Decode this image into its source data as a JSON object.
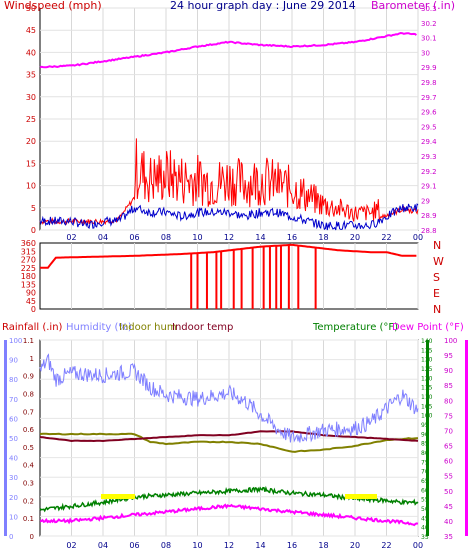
{
  "charts": {
    "title": "24 hour graph day : June 29 2014",
    "x_ticks": [
      "02",
      "04",
      "06",
      "08",
      "10",
      "12",
      "14",
      "16",
      "18",
      "20",
      "22",
      "00"
    ]
  },
  "colors": {
    "wind": "#ff0000",
    "gust_avg": "#0000cc",
    "barometer": "#ff00ff",
    "direction": "#ff0000",
    "humidity": "#8080ff",
    "indoor_hum": "#808000",
    "indoor_temp": "#800020",
    "temperature": "#008000",
    "dew_point": "#ff00ff",
    "rainfall": "#800000",
    "sunrise_sunset": "#ffff00"
  },
  "chart_data": [
    {
      "type": "line",
      "name": "wind-barometer",
      "ylabel_left": "Windspeed (mph)",
      "ylabel_right": "Barometer (.in)",
      "yticks_left": [
        "0",
        "5",
        "10",
        "15",
        "20",
        "25",
        "30",
        "35",
        "40",
        "45",
        "50"
      ],
      "yticks_right": [
        "28.8",
        "28.9",
        "29",
        "29.1",
        "29.2",
        "29.3",
        "29.4",
        "29.5",
        "29.6",
        "29.7",
        "29.8",
        "29.9",
        "30",
        "30.1",
        "30.2",
        "30.3"
      ],
      "ylim_left": [
        0,
        50
      ],
      "ylim_right": [
        28.8,
        30.3
      ],
      "series": [
        {
          "name": "Windspeed",
          "x": [
            0,
            1,
            2,
            3,
            4,
            5,
            6,
            7,
            8,
            9,
            10,
            11,
            12,
            13,
            14,
            15,
            16,
            17,
            18,
            19,
            20,
            21,
            22,
            23,
            24
          ],
          "values": [
            3,
            3,
            3,
            3,
            3,
            4,
            15,
            12,
            13,
            12,
            12,
            11,
            12,
            11,
            12,
            11,
            10,
            8,
            6,
            5,
            4,
            4,
            6,
            9,
            8
          ]
        },
        {
          "name": "Average",
          "x": [
            0,
            1,
            2,
            3,
            4,
            5,
            6,
            7,
            8,
            9,
            10,
            11,
            12,
            13,
            14,
            15,
            16,
            17,
            18,
            19,
            20,
            21,
            22,
            23,
            24
          ],
          "values": [
            2,
            2,
            2,
            1,
            2,
            2,
            5,
            4,
            4,
            3,
            4,
            4,
            4,
            3,
            4,
            4,
            3,
            2,
            1,
            1,
            1,
            1,
            3,
            5,
            5
          ]
        },
        {
          "name": "Barometer",
          "x": [
            0,
            2,
            4,
            6,
            8,
            10,
            12,
            14,
            16,
            18,
            20,
            22,
            23,
            24
          ],
          "values": [
            29.9,
            29.91,
            29.94,
            29.97,
            30.0,
            30.04,
            30.07,
            30.05,
            30.04,
            30.05,
            30.07,
            30.11,
            30.13,
            30.12
          ]
        }
      ]
    },
    {
      "type": "line",
      "name": "wind-direction",
      "yticks_left": [
        "0",
        "45",
        "90",
        "135",
        "180",
        "225",
        "270",
        "315",
        "360"
      ],
      "compass": [
        "N",
        "W",
        "S",
        "E",
        "N"
      ],
      "ylim": [
        0,
        360
      ],
      "series": [
        {
          "name": "Direction",
          "x": [
            0,
            0.5,
            1,
            6,
            9,
            10,
            11,
            12,
            13,
            14,
            15,
            16,
            17,
            18,
            19,
            20,
            21,
            22,
            23,
            24
          ],
          "values": [
            225,
            225,
            280,
            290,
            300,
            305,
            310,
            320,
            330,
            340,
            345,
            350,
            340,
            330,
            320,
            315,
            310,
            310,
            290,
            290
          ]
        }
      ]
    },
    {
      "type": "line",
      "name": "temp-humidity",
      "legend": [
        "Rainfall (.in)",
        "Humidity (%)",
        "Indoor hum",
        "Indoor temp",
        "Temperature (°F)",
        "Dew Point (°F)"
      ],
      "yticks_rain": [
        "0",
        "0.1",
        "0.2",
        "0.3",
        "0.4",
        "0.5",
        "0.6",
        "0.7",
        "0.8",
        "0.9",
        "1",
        "1.1"
      ],
      "yticks_humidity": [
        "0",
        "10",
        "20",
        "30",
        "40",
        "50",
        "60",
        "70",
        "80",
        "90",
        "100"
      ],
      "yticks_temp": [
        "35",
        "40",
        "45",
        "50",
        "55",
        "60",
        "65",
        "70",
        "75",
        "80",
        "85",
        "90",
        "95",
        "100",
        "105",
        "110",
        "115",
        "120",
        "125",
        "130",
        "135",
        "140"
      ],
      "yticks_dew": [
        "35",
        "40",
        "45",
        "50",
        "55",
        "60",
        "65",
        "70",
        "75",
        "80",
        "85",
        "90",
        "95",
        "100"
      ],
      "series": [
        {
          "name": "Humidity (%)",
          "x": [
            0,
            0.5,
            1,
            2,
            4,
            6,
            7,
            8,
            10,
            12,
            13,
            14,
            15,
            16,
            17,
            18,
            20,
            21,
            22,
            23,
            24
          ],
          "values": [
            84,
            90,
            80,
            83,
            82,
            84,
            76,
            72,
            70,
            73,
            69,
            62,
            55,
            50,
            52,
            54,
            55,
            58,
            65,
            72,
            64
          ]
        },
        {
          "name": "Indoor temp",
          "x": [
            0,
            2,
            4,
            6,
            8,
            10,
            12,
            14,
            16,
            18,
            20,
            22,
            24
          ],
          "values": [
            88,
            86,
            86,
            87,
            88,
            89,
            89,
            91,
            91,
            89,
            88,
            87,
            86
          ]
        },
        {
          "name": "Indoor hum",
          "x": [
            0,
            2,
            4,
            6,
            7,
            8,
            10,
            12,
            14,
            15,
            16,
            18,
            20,
            22,
            24
          ],
          "values": [
            52,
            52,
            52,
            52,
            48,
            47,
            48,
            48,
            47,
            45,
            43,
            44,
            46,
            49,
            50
          ]
        },
        {
          "name": "Temperature (°F)",
          "x": [
            0,
            1,
            2,
            4,
            6,
            8,
            10,
            12,
            14,
            16,
            18,
            20,
            22,
            23,
            24
          ],
          "values": [
            49,
            50,
            51,
            53,
            56,
            57,
            58,
            59,
            60,
            58,
            57,
            55,
            54,
            53,
            53
          ]
        },
        {
          "name": "Dew Point (°F)",
          "x": [
            0,
            2,
            4,
            6,
            8,
            10,
            12,
            14,
            16,
            18,
            20,
            22,
            24
          ],
          "values": [
            40,
            40,
            41,
            42,
            43,
            44,
            45,
            44,
            43,
            42,
            41,
            40,
            39
          ]
        }
      ]
    }
  ]
}
